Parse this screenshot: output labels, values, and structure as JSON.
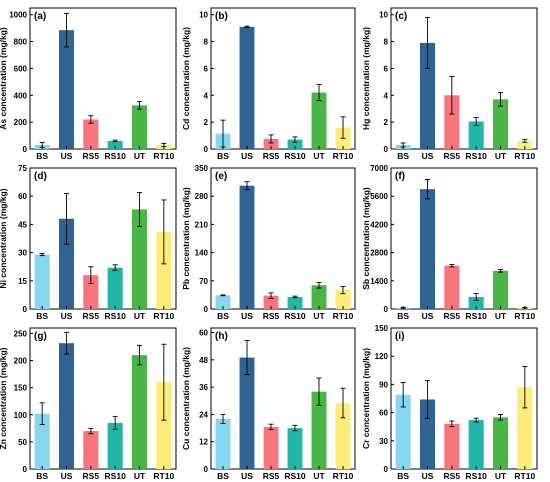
{
  "figure": {
    "panels": [
      {
        "panel_label": "(a)"
      },
      {
        "panel_label": "(b)"
      },
      {
        "panel_label": "(c)"
      },
      {
        "panel_label": "(d)"
      },
      {
        "panel_label": "(e)"
      },
      {
        "panel_label": "(f)"
      },
      {
        "panel_label": "(g)"
      },
      {
        "panel_label": "(h)"
      },
      {
        "panel_label": "(i)"
      }
    ]
  },
  "colors": {
    "BS": "#87d7f0",
    "US": "#2f6394",
    "RS5": "#f7757d",
    "RS10": "#21b7a8",
    "UT": "#48b546",
    "RT10": "#fdec7a"
  },
  "chart_data": [
    {
      "type": "bar",
      "title": "",
      "panel_label": "(a)",
      "ylabel": "As concentration (mg/kg)",
      "xlabel": "",
      "categories": [
        "BS",
        "US",
        "RS5",
        "RS10",
        "UT",
        "RT10"
      ],
      "values": [
        30,
        885,
        220,
        60,
        325,
        30
      ],
      "errors": [
        18,
        125,
        28,
        6,
        28,
        12
      ],
      "ylim": [
        0,
        1050
      ],
      "yticks": [
        0,
        200,
        400,
        600,
        800,
        1000
      ],
      "ytick_labels": [
        "0",
        "200",
        "400",
        "600",
        "800",
        "1000"
      ]
    },
    {
      "type": "bar",
      "title": "",
      "panel_label": "(b)",
      "ylabel": "Cd concentration (mg/kg)",
      "xlabel": "",
      "categories": [
        "BS",
        "US",
        "RS5",
        "RS10",
        "UT",
        "RT10"
      ],
      "values": [
        1.15,
        9.1,
        0.75,
        0.7,
        4.2,
        1.6
      ],
      "errors": [
        1.0,
        0.05,
        0.3,
        0.2,
        0.6,
        0.8
      ],
      "ylim": [
        0,
        10.5
      ],
      "yticks": [
        0,
        2,
        4,
        6,
        8,
        10
      ],
      "ytick_labels": [
        "0",
        "2",
        "4",
        "6",
        "8",
        "10"
      ]
    },
    {
      "type": "bar",
      "title": "",
      "panel_label": "(c)",
      "ylabel": "Hg concentration (mg/kg)",
      "xlabel": "",
      "categories": [
        "BS",
        "US",
        "RS5",
        "RS10",
        "UT",
        "RT10"
      ],
      "values": [
        0.3,
        7.9,
        4.0,
        2.05,
        3.7,
        0.6
      ],
      "errors": [
        0.15,
        1.9,
        1.4,
        0.3,
        0.5,
        0.1
      ],
      "ylim": [
        0,
        10.5
      ],
      "yticks": [
        0,
        2,
        4,
        6,
        8,
        10
      ],
      "ytick_labels": [
        "0",
        "2",
        "4",
        "6",
        "8",
        "10"
      ]
    },
    {
      "type": "bar",
      "title": "",
      "panel_label": "(d)",
      "ylabel": "Ni concentration (mg/kg)",
      "xlabel": "",
      "categories": [
        "BS",
        "US",
        "RS5",
        "RS10",
        "UT",
        "RT10"
      ],
      "values": [
        29,
        48,
        18,
        22,
        53,
        41
      ],
      "errors": [
        0.6,
        13.5,
        4.5,
        1.5,
        9,
        17
      ],
      "ylim": [
        0,
        75
      ],
      "yticks": [
        0,
        15,
        30,
        45,
        60,
        75
      ],
      "ytick_labels": [
        "0",
        "15",
        "30",
        "45",
        "60",
        "75"
      ]
    },
    {
      "type": "bar",
      "title": "",
      "panel_label": "(e)",
      "ylabel": "Pb concentration (mg/kg)",
      "xlabel": "",
      "categories": [
        "BS",
        "US",
        "RS5",
        "RS10",
        "UT",
        "RT10"
      ],
      "values": [
        34,
        306,
        33,
        30,
        59,
        47
      ],
      "errors": [
        1,
        10,
        7,
        2,
        7,
        9
      ],
      "ylim": [
        0,
        350
      ],
      "yticks": [
        0,
        70,
        140,
        210,
        280,
        350
      ],
      "ytick_labels": [
        "0",
        "70",
        "140",
        "210",
        "280",
        "350"
      ]
    },
    {
      "type": "bar",
      "title": "",
      "panel_label": "(f)",
      "ylabel": "Sb concentration (mg/kg)",
      "xlabel": "",
      "categories": [
        "BS",
        "US",
        "RS5",
        "RS10",
        "UT",
        "RT10"
      ],
      "values": [
        60,
        5950,
        2150,
        600,
        1900,
        60
      ],
      "errors": [
        20,
        480,
        60,
        170,
        70,
        15
      ],
      "ylim": [
        0,
        7000
      ],
      "yticks": [
        0,
        1400,
        2800,
        4200,
        5600,
        7000
      ],
      "ytick_labels": [
        "0",
        "1400",
        "2800",
        "4200",
        "5600",
        "7000"
      ]
    },
    {
      "type": "bar",
      "title": "",
      "panel_label": "(g)",
      "ylabel": "Zn concentration (mg/kg)",
      "xlabel": "",
      "categories": [
        "BS",
        "US",
        "RS5",
        "RS10",
        "UT",
        "RT10"
      ],
      "values": [
        102,
        232,
        70,
        85,
        210,
        160
      ],
      "errors": [
        20,
        20,
        5,
        12,
        18,
        70
      ],
      "ylim": [
        0,
        260
      ],
      "yticks": [
        0,
        50,
        100,
        150,
        200,
        250
      ],
      "ytick_labels": [
        "0",
        "50",
        "100",
        "150",
        "200",
        "250"
      ]
    },
    {
      "type": "bar",
      "title": "",
      "panel_label": "(h)",
      "ylabel": "Cu concentration (mg/kg)",
      "xlabel": "",
      "categories": [
        "BS",
        "US",
        "RS5",
        "RS10",
        "UT",
        "RT10"
      ],
      "values": [
        22,
        49,
        18.5,
        18,
        34,
        29
      ],
      "errors": [
        2,
        7.5,
        1.2,
        1.2,
        6,
        6.5
      ],
      "ylim": [
        0,
        62
      ],
      "yticks": [
        0,
        12,
        24,
        36,
        48,
        60
      ],
      "ytick_labels": [
        "0",
        "12",
        "24",
        "36",
        "48",
        "60"
      ]
    },
    {
      "type": "bar",
      "title": "",
      "panel_label": "(i)",
      "ylabel": "Cr concentration (mg/kg)",
      "xlabel": "",
      "categories": [
        "BS",
        "US",
        "RS5",
        "RS10",
        "UT",
        "RT10"
      ],
      "values": [
        79,
        74,
        48,
        52,
        55,
        87
      ],
      "errors": [
        13,
        20,
        3,
        2,
        3,
        22
      ],
      "ylim": [
        0,
        150
      ],
      "yticks": [
        0,
        30,
        60,
        90,
        120,
        150
      ],
      "ytick_labels": [
        "0",
        "30",
        "60",
        "90",
        "120",
        "150"
      ]
    }
  ]
}
